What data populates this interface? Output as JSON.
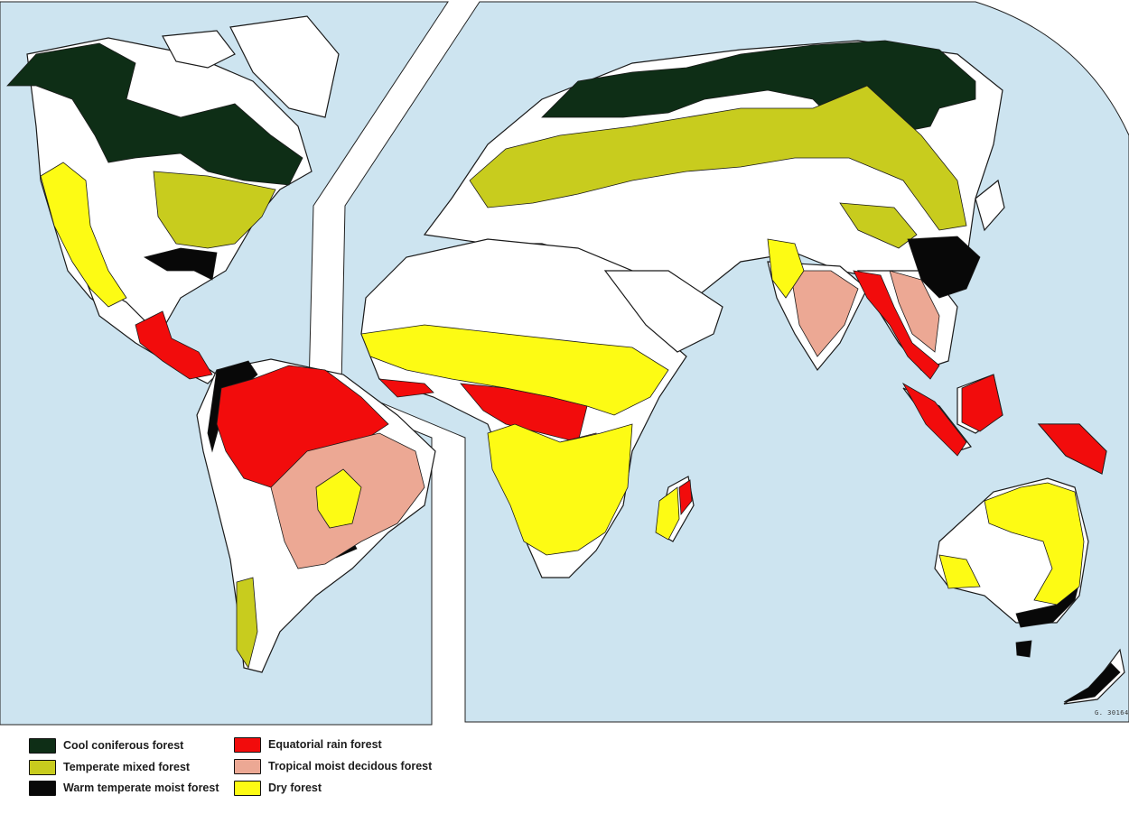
{
  "map": {
    "code": "G. 30164",
    "colors": {
      "ocean": "#cde4f0",
      "land": "#ffffff",
      "outline": "#1a1a1a",
      "cool_coniferous": "#0e2e16",
      "temperate_mixed": "#c8cc1e",
      "warm_temperate_moist": "#080808",
      "equatorial_rain": "#f20c0c",
      "tropical_moist_deciduous": "#eca894",
      "dry": "#fdfb14"
    }
  },
  "legend": {
    "items": [
      {
        "key": "cool_coniferous",
        "label": "Cool coniferous forest",
        "color": "#0e2e16"
      },
      {
        "key": "temperate_mixed",
        "label": "Temperate mixed forest",
        "color": "#c8cc1e"
      },
      {
        "key": "warm_temperate_moist",
        "label": "Warm temperate moist forest",
        "color": "#080808"
      },
      {
        "key": "equatorial_rain",
        "label": "Equatorial rain forest",
        "color": "#f20c0c"
      },
      {
        "key": "tropical_moist_deciduous",
        "label": "Tropical moist decidous forest",
        "color": "#eca894"
      },
      {
        "key": "dry",
        "label": "Dry forest",
        "color": "#fdfb14"
      }
    ]
  }
}
